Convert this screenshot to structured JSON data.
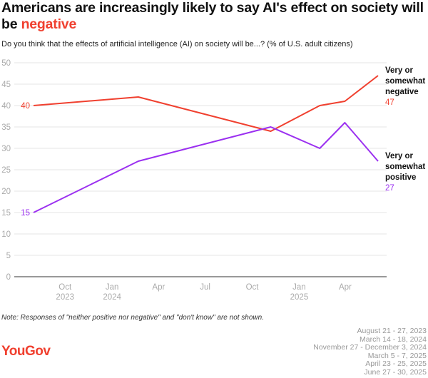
{
  "title": {
    "main": "Americans are increasingly likely to say AI's effect on society will be ",
    "highlight": "negative"
  },
  "subtitle": "Do you think that the effects of artificial intelligence (AI) on society will be...? (% of U.S. adult citizens)",
  "note": "Note: Responses of \"neither positive nor negative\" and \"don't know\" are not shown.",
  "logo": "YouGov",
  "survey_dates": [
    "August 21 - 27, 2023",
    "March 14 - 18, 2024",
    "November 27 - December 3, 2024",
    "March 5 - 7, 2025",
    "April 23 - 25, 2025",
    "June 27 - 30, 2025"
  ],
  "chart_data": {
    "type": "line",
    "x": [
      "2023-08-24",
      "2024-03-16",
      "2024-11-30",
      "2025-03-06",
      "2025-04-24",
      "2025-06-28"
    ],
    "series": [
      {
        "name": "Very or somewhat negative",
        "values": [
          40,
          42,
          34,
          40,
          41,
          47
        ],
        "color": "#f0402f",
        "start_label": "40",
        "end_label": "47"
      },
      {
        "name": "Very or somewhat positive",
        "values": [
          15,
          27,
          35,
          30,
          36,
          27
        ],
        "color": "#9b30f0",
        "start_label": "15",
        "end_label": "27"
      }
    ],
    "ylim": [
      0,
      50
    ],
    "yticks": [
      0,
      5,
      10,
      15,
      20,
      25,
      30,
      35,
      40,
      45,
      50
    ],
    "xticks": [
      {
        "date": "2023-10-01",
        "label": "Oct",
        "year": "2023"
      },
      {
        "date": "2024-01-01",
        "label": "Jan",
        "year": "2024"
      },
      {
        "date": "2024-04-01",
        "label": "Apr",
        "year": ""
      },
      {
        "date": "2024-07-01",
        "label": "Jul",
        "year": ""
      },
      {
        "date": "2024-10-01",
        "label": "Oct",
        "year": ""
      },
      {
        "date": "2025-01-01",
        "label": "Jan",
        "year": "2025"
      },
      {
        "date": "2025-04-01",
        "label": "Apr",
        "year": ""
      }
    ],
    "grid": true
  }
}
